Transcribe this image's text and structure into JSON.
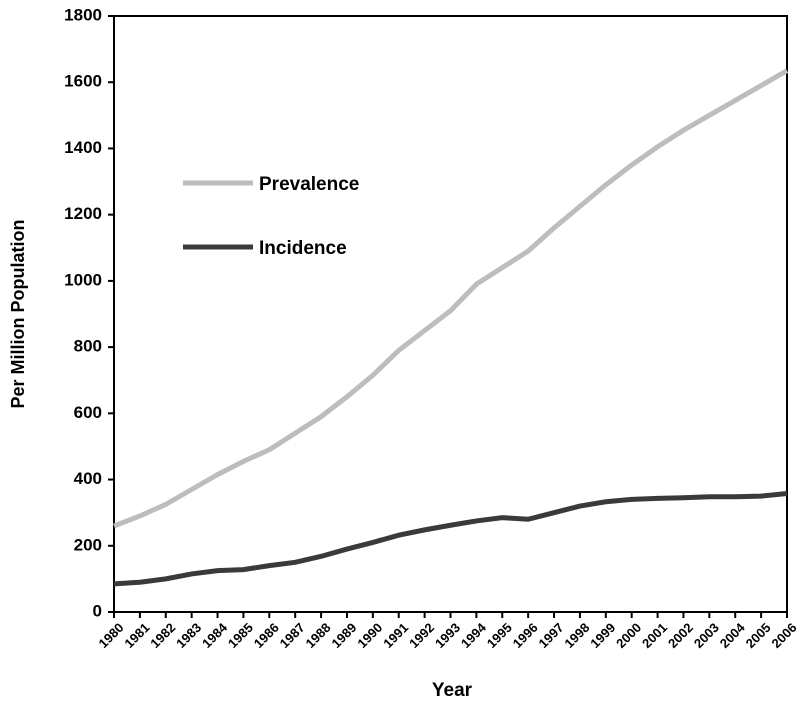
{
  "chart_data": {
    "type": "line",
    "x_label": "Year",
    "y_label": "Per Million Population",
    "categories": [
      "1980",
      "1981",
      "1982",
      "1983",
      "1984",
      "1985",
      "1986",
      "1987",
      "1988",
      "1989",
      "1990",
      "1991",
      "1992",
      "1993",
      "1994",
      "1995",
      "1996",
      "1997",
      "1998",
      "1999",
      "2000",
      "2001",
      "2002",
      "2003",
      "2004",
      "2005",
      "2006"
    ],
    "series": [
      {
        "name": "Prevalence",
        "color": "#bdbdbd",
        "values": [
          260,
          290,
          325,
          370,
          415,
          455,
          490,
          540,
          590,
          650,
          715,
          790,
          850,
          910,
          990,
          1040,
          1090,
          1160,
          1225,
          1290,
          1350,
          1405,
          1455,
          1500,
          1545,
          1590,
          1635
        ]
      },
      {
        "name": "Incidence",
        "color": "#3a3a3a",
        "values": [
          85,
          90,
          100,
          115,
          125,
          128,
          140,
          150,
          168,
          190,
          210,
          232,
          248,
          262,
          275,
          285,
          280,
          300,
          320,
          333,
          340,
          343,
          345,
          348,
          348,
          350,
          358
        ]
      }
    ],
    "ylim": [
      0,
      1800
    ],
    "yticks": [
      0,
      200,
      400,
      600,
      800,
      1000,
      1200,
      1400,
      1600,
      1800
    ],
    "legend": "left"
  }
}
